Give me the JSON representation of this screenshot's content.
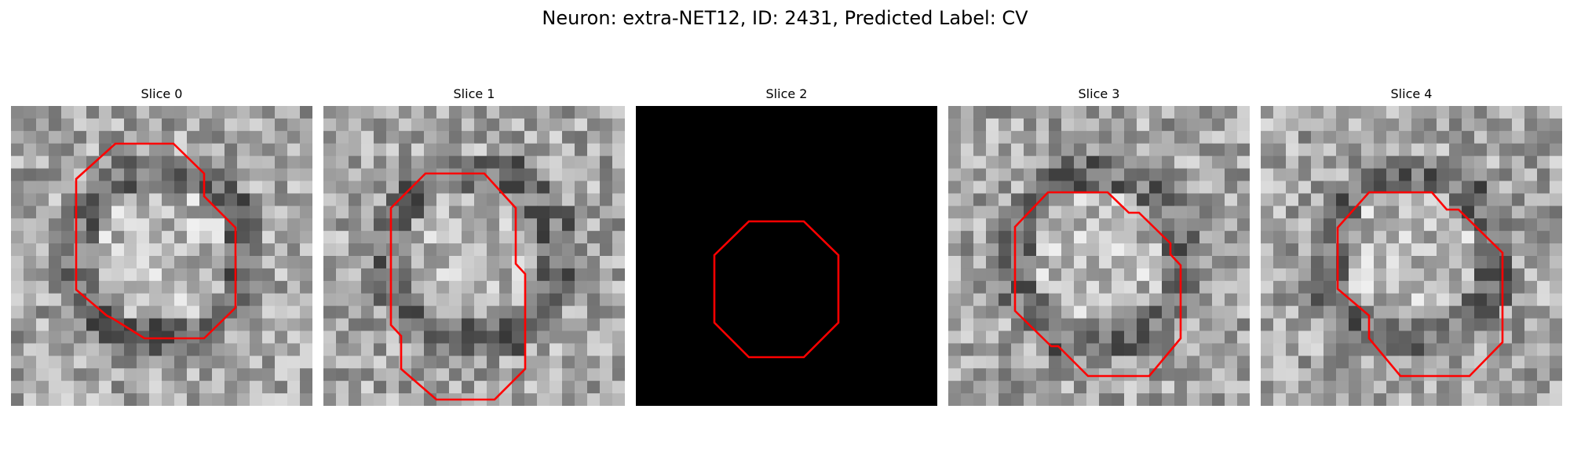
{
  "figure": {
    "title": "Neuron: extra-NET12, ID: 2431, Predicted Label: CV"
  },
  "panels": [
    {
      "title": "Slice 0",
      "image": "grayscale-microscopy-slice",
      "contour_color": "#ff0000"
    },
    {
      "title": "Slice 1",
      "image": "grayscale-microscopy-slice",
      "contour_color": "#ff0000"
    },
    {
      "title": "Slice 2",
      "image": "black-empty-slice",
      "contour_color": "#ff0000"
    },
    {
      "title": "Slice 3",
      "image": "grayscale-microscopy-slice",
      "contour_color": "#ff0000"
    },
    {
      "title": "Slice 4",
      "image": "grayscale-microscopy-slice",
      "contour_color": "#ff0000"
    }
  ]
}
